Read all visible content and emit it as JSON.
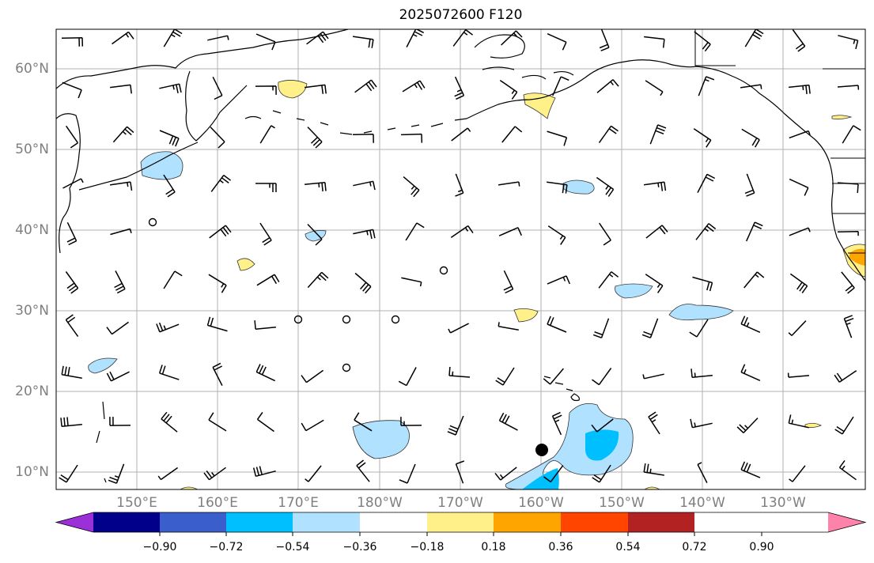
{
  "title": "2025072600 F120",
  "lat_labels": [
    "60°N",
    "50°N",
    "40°N",
    "30°N",
    "20°N",
    "10°N"
  ],
  "lon_labels": [
    "150°E",
    "160°E",
    "170°E",
    "180°W",
    "170°W",
    "160°W",
    "150°W",
    "140°W",
    "130°W"
  ],
  "colorbar": {
    "ticks": [
      "−0.90",
      "−0.72",
      "−0.54",
      "−0.36",
      "−0.18",
      "0.18",
      "0.36",
      "0.54",
      "0.72",
      "0.90"
    ],
    "colors": [
      "#9b30d9",
      "#00008b",
      "#3a5fcd",
      "#00bfff",
      "#b0e2ff",
      "#ffffff",
      "#fff08a",
      "#ffa500",
      "#ff4500",
      "#b22222",
      "#ff82ab"
    ]
  }
}
